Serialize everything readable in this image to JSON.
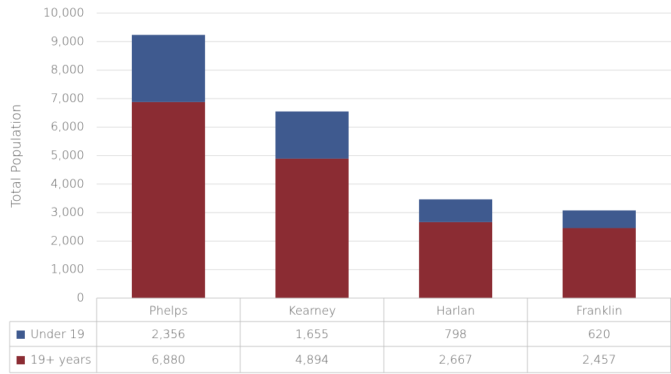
{
  "chart_data": {
    "type": "stacked_bar",
    "y_label": "Total Population",
    "categories": [
      "Phelps",
      "Kearney",
      "Harlan",
      "Franklin"
    ],
    "series": [
      {
        "name": "Under 19",
        "color": "#3f5a8f",
        "values": [
          2356,
          1655,
          798,
          620
        ],
        "value_labels": [
          "2,356",
          "1,655",
          "798",
          "620"
        ]
      },
      {
        "name": "19+ years",
        "color": "#8b2c33",
        "values": [
          6880,
          4894,
          2667,
          2457
        ],
        "value_labels": [
          "6,880",
          "4,894",
          "2,667",
          "2,457"
        ]
      }
    ],
    "ylim": [
      0,
      10000
    ],
    "yticks": [
      0,
      {
        "value": 1000,
        "label": "1,000"
      },
      {
        "value": 2000,
        "label": "2,000"
      },
      {
        "value": 3000,
        "label": "3,000"
      },
      {
        "value": 4000,
        "label": "4,000"
      },
      {
        "value": 5000,
        "label": "5,000"
      },
      {
        "value": 6000,
        "label": "6,000"
      },
      {
        "value": 7000,
        "label": "7,000"
      },
      {
        "value": 8000,
        "label": "8,000"
      },
      {
        "value": 9000,
        "label": "9,000"
      },
      {
        "value": 10000,
        "label": "10,000"
      }
    ],
    "grid": true,
    "legend": "table"
  }
}
